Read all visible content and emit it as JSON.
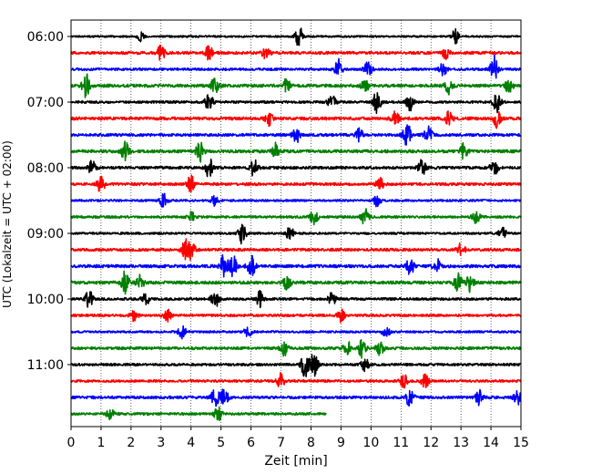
{
  "chart_data": {
    "type": "line",
    "title": "",
    "xlabel": "Zeit  [min]",
    "ylabel": "UTC (Lokalzeit = UTC + 02:00)",
    "xlim": [
      0,
      15
    ],
    "x_ticks": [
      0,
      1,
      2,
      3,
      4,
      5,
      6,
      7,
      8,
      9,
      10,
      11,
      12,
      13,
      14,
      15
    ],
    "y_ticks": [
      {
        "label": "06:00",
        "row": 0
      },
      {
        "label": "07:00",
        "row": 4
      },
      {
        "label": "08:00",
        "row": 8
      },
      {
        "label": "09:00",
        "row": 12
      },
      {
        "label": "10:00",
        "row": 16
      },
      {
        "label": "11:00",
        "row": 20
      }
    ],
    "grid": "vertical dotted at each minute",
    "row_interval_min": 15,
    "row_colors": [
      "#000000",
      "#ff0000",
      "#0000ff",
      "#008000"
    ],
    "series": [
      {
        "start": "06:00",
        "color": "#000000",
        "end_min": 15,
        "amp": 0.6,
        "events": [
          [
            7.6,
            2.4
          ],
          [
            12.8,
            1.6
          ],
          [
            2.3,
            1.0
          ]
        ]
      },
      {
        "start": "06:15",
        "color": "#ff0000",
        "end_min": 15,
        "amp": 0.9,
        "events": [
          [
            3.0,
            1.8
          ],
          [
            4.6,
            1.6
          ],
          [
            6.5,
            1.4
          ],
          [
            12.5,
            1.3
          ]
        ]
      },
      {
        "start": "06:30",
        "color": "#0000ff",
        "end_min": 15,
        "amp": 0.8,
        "events": [
          [
            8.9,
            2.4
          ],
          [
            9.9,
            1.8
          ],
          [
            12.4,
            1.5
          ],
          [
            14.1,
            3.5
          ]
        ]
      },
      {
        "start": "06:45",
        "color": "#008000",
        "end_min": 15,
        "amp": 1.0,
        "events": [
          [
            0.5,
            2.6
          ],
          [
            4.8,
            2.0
          ],
          [
            7.2,
            1.8
          ],
          [
            9.8,
            1.5
          ],
          [
            12.6,
            2.0
          ],
          [
            14.6,
            1.8
          ]
        ]
      },
      {
        "start": "07:00",
        "color": "#000000",
        "end_min": 15,
        "amp": 0.8,
        "events": [
          [
            4.6,
            2.2
          ],
          [
            8.7,
            1.6
          ],
          [
            10.2,
            2.6
          ],
          [
            11.3,
            2.0
          ],
          [
            14.2,
            2.2
          ]
        ]
      },
      {
        "start": "07:15",
        "color": "#ff0000",
        "end_min": 15,
        "amp": 1.0,
        "events": [
          [
            6.6,
            1.5
          ],
          [
            10.8,
            1.7
          ],
          [
            12.6,
            1.8
          ],
          [
            14.2,
            2.0
          ]
        ]
      },
      {
        "start": "07:30",
        "color": "#0000ff",
        "end_min": 15,
        "amp": 0.9,
        "events": [
          [
            7.5,
            2.0
          ],
          [
            9.6,
            1.4
          ],
          [
            11.2,
            2.8
          ],
          [
            11.9,
            2.2
          ]
        ]
      },
      {
        "start": "07:45",
        "color": "#008000",
        "end_min": 15,
        "amp": 1.0,
        "events": [
          [
            1.8,
            2.2
          ],
          [
            4.3,
            2.3
          ],
          [
            6.8,
            1.8
          ],
          [
            13.1,
            1.8
          ]
        ]
      },
      {
        "start": "08:00",
        "color": "#000000",
        "end_min": 15,
        "amp": 0.9,
        "events": [
          [
            0.7,
            1.5
          ],
          [
            4.6,
            2.6
          ],
          [
            6.1,
            2.0
          ],
          [
            11.7,
            1.8
          ],
          [
            14.1,
            2.0
          ]
        ]
      },
      {
        "start": "08:15",
        "color": "#ff0000",
        "end_min": 15,
        "amp": 0.9,
        "events": [
          [
            1.0,
            2.0
          ],
          [
            4.0,
            2.0
          ],
          [
            10.3,
            1.4
          ]
        ]
      },
      {
        "start": "08:30",
        "color": "#0000ff",
        "end_min": 15,
        "amp": 0.7,
        "events": [
          [
            3.1,
            1.7
          ],
          [
            4.8,
            1.3
          ],
          [
            10.2,
            1.3
          ]
        ]
      },
      {
        "start": "08:45",
        "color": "#008000",
        "end_min": 15,
        "amp": 0.8,
        "events": [
          [
            4.0,
            1.3
          ],
          [
            8.1,
            1.8
          ],
          [
            9.8,
            1.8
          ],
          [
            13.5,
            1.5
          ]
        ]
      },
      {
        "start": "09:00",
        "color": "#000000",
        "end_min": 15,
        "amp": 0.7,
        "events": [
          [
            5.7,
            2.6
          ],
          [
            7.3,
            1.6
          ],
          [
            14.4,
            1.6
          ]
        ]
      },
      {
        "start": "09:15",
        "color": "#ff0000",
        "end_min": 15,
        "amp": 0.9,
        "events": [
          [
            3.8,
            2.2
          ],
          [
            4.0,
            2.4
          ],
          [
            13.0,
            1.4
          ]
        ]
      },
      {
        "start": "09:30",
        "color": "#0000ff",
        "end_min": 15,
        "amp": 1.0,
        "events": [
          [
            5.1,
            2.8
          ],
          [
            5.4,
            2.4
          ],
          [
            6.0,
            2.6
          ],
          [
            11.3,
            2.0
          ],
          [
            12.2,
            1.6
          ]
        ]
      },
      {
        "start": "09:45",
        "color": "#008000",
        "end_min": 15,
        "amp": 1.0,
        "events": [
          [
            1.8,
            2.8
          ],
          [
            2.3,
            1.6
          ],
          [
            7.2,
            1.6
          ],
          [
            12.9,
            2.4
          ],
          [
            13.3,
            2.0
          ]
        ]
      },
      {
        "start": "10:00",
        "color": "#000000",
        "end_min": 15,
        "amp": 0.8,
        "events": [
          [
            0.6,
            2.0
          ],
          [
            2.5,
            1.8
          ],
          [
            4.8,
            2.2
          ],
          [
            6.3,
            1.8
          ],
          [
            8.7,
            1.4
          ]
        ]
      },
      {
        "start": "10:15",
        "color": "#ff0000",
        "end_min": 15,
        "amp": 0.8,
        "events": [
          [
            2.1,
            1.4
          ],
          [
            3.2,
            1.6
          ],
          [
            9.0,
            1.4
          ]
        ]
      },
      {
        "start": "10:30",
        "color": "#0000ff",
        "end_min": 15,
        "amp": 0.7,
        "events": [
          [
            3.7,
            1.6
          ],
          [
            5.9,
            1.3
          ],
          [
            10.5,
            1.3
          ]
        ]
      },
      {
        "start": "10:45",
        "color": "#008000",
        "end_min": 15,
        "amp": 0.9,
        "events": [
          [
            7.1,
            1.8
          ],
          [
            9.2,
            1.8
          ],
          [
            9.7,
            2.0
          ],
          [
            10.3,
            1.6
          ]
        ]
      },
      {
        "start": "11:00",
        "color": "#000000",
        "end_min": 15,
        "amp": 0.8,
        "events": [
          [
            7.8,
            3.0
          ],
          [
            8.1,
            2.8
          ],
          [
            9.8,
            1.5
          ]
        ]
      },
      {
        "start": "11:15",
        "color": "#ff0000",
        "end_min": 15,
        "amp": 0.8,
        "events": [
          [
            7.0,
            1.7
          ],
          [
            11.1,
            1.5
          ],
          [
            11.8,
            1.5
          ]
        ]
      },
      {
        "start": "11:30",
        "color": "#0000ff",
        "end_min": 15,
        "amp": 0.9,
        "events": [
          [
            4.8,
            2.0
          ],
          [
            5.1,
            2.2
          ],
          [
            11.3,
            2.2
          ],
          [
            13.6,
            1.6
          ],
          [
            14.9,
            1.8
          ]
        ]
      },
      {
        "start": "11:45",
        "color": "#008000",
        "end_min": 8.5,
        "amp": 0.8,
        "events": [
          [
            1.3,
            1.4
          ],
          [
            4.9,
            1.7
          ]
        ]
      }
    ]
  }
}
